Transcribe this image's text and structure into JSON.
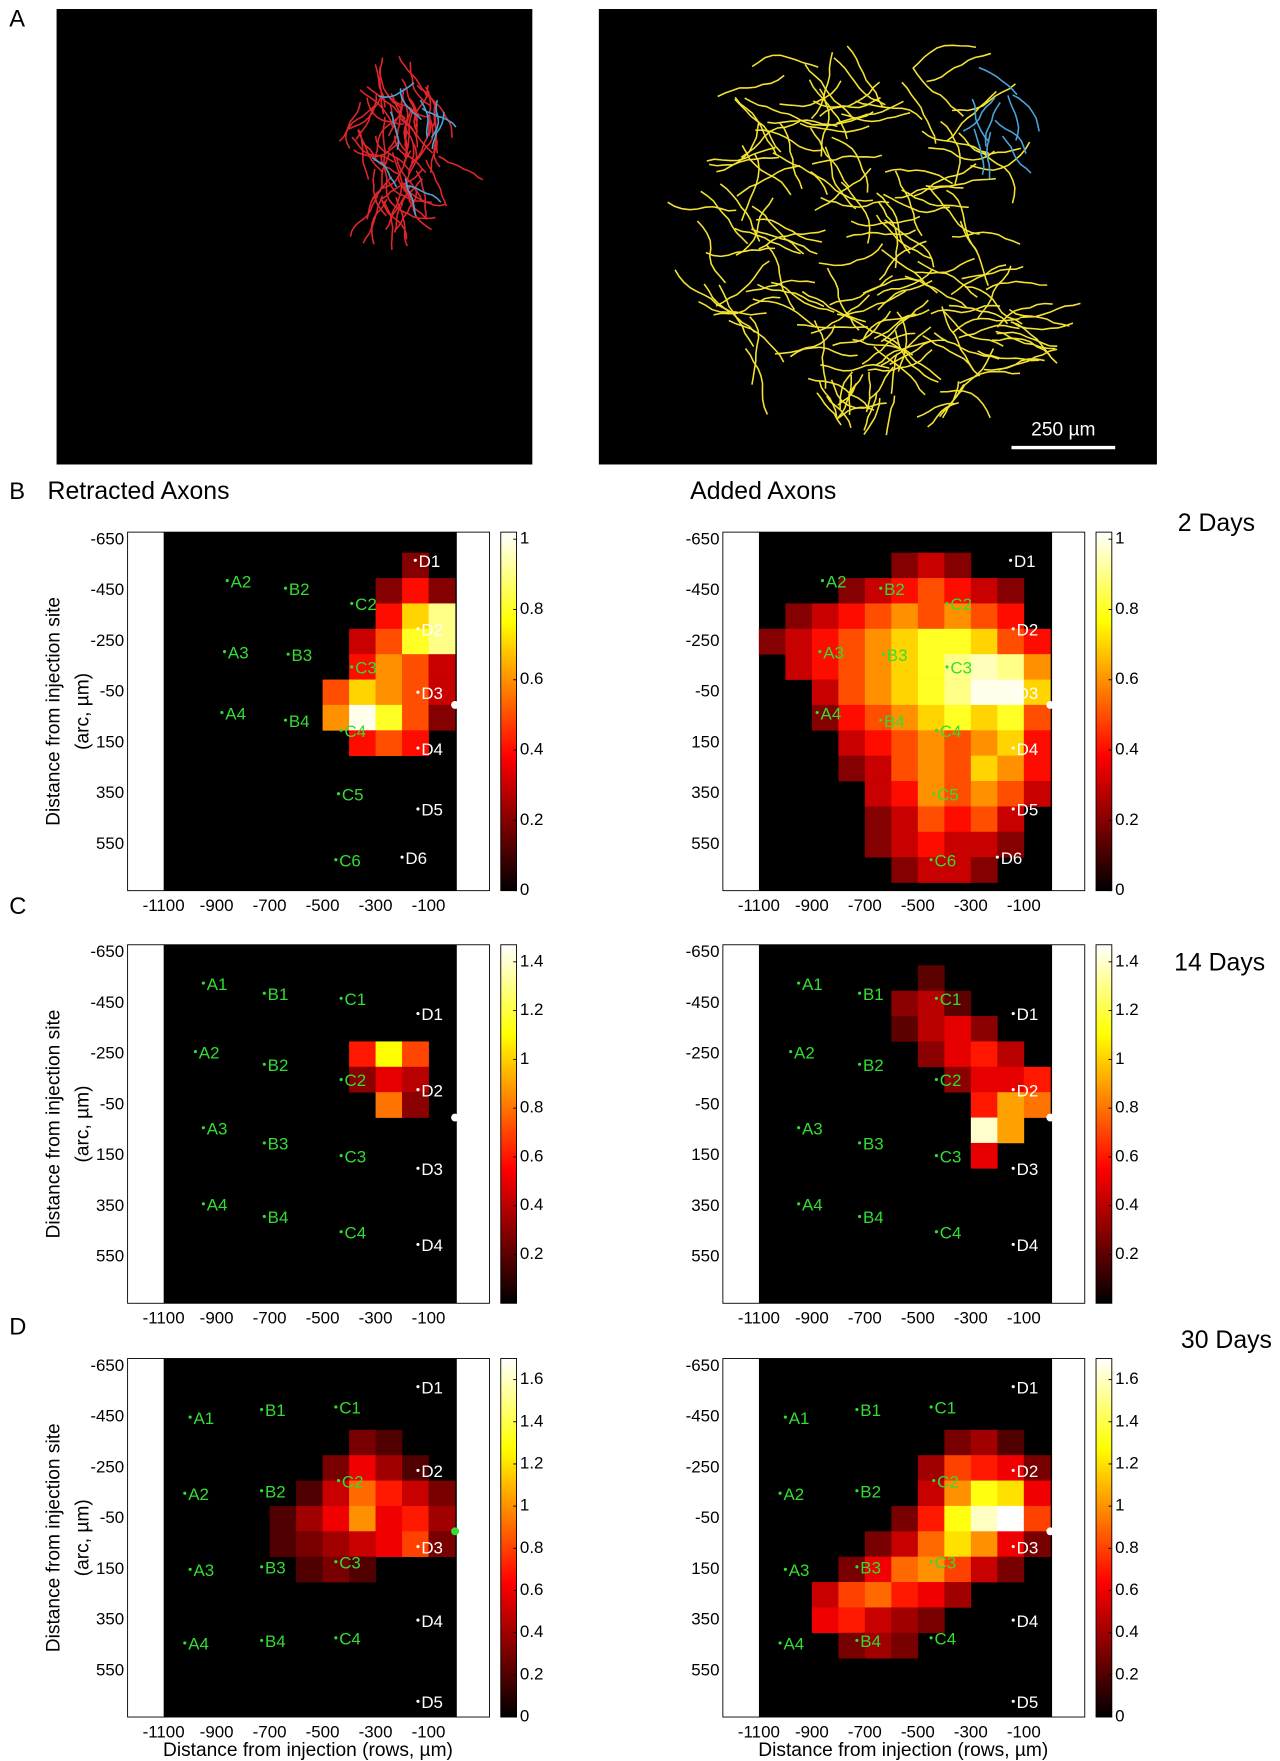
{
  "figure": {
    "panel_labels": [
      "A",
      "B",
      "C",
      "D"
    ],
    "scale_bar": "250 µm",
    "column_titles": [
      "Retracted Axons",
      "Added Axons"
    ],
    "times": [
      "2 Days",
      "14 Days",
      "30 Days"
    ],
    "x_label": "Distance from injection (rows, µm)",
    "y_label": [
      "Distance from injection site",
      "(arc, µm)"
    ],
    "whiskers": [
      [
        {
          "color": "#33dd33",
          "items": [
            [
              "A2",
              -860,
              -490
            ],
            [
              "B2",
              -640,
              -460
            ],
            [
              "C2",
              -390,
              -400
            ],
            [
              "A3",
              -870,
              -210
            ],
            [
              "B3",
              -630,
              -200
            ],
            [
              "C3",
              -390,
              -150
            ],
            [
              "A4",
              -880,
              30
            ],
            [
              "B4",
              -640,
              60
            ],
            [
              "C4",
              -430,
              100
            ],
            [
              "C5",
              -440,
              350
            ],
            [
              "C6",
              -450,
              610
            ]
          ]
        },
        {
          "color": "#ffffff",
          "items": [
            [
              "D1",
              -150,
              -570
            ],
            [
              "D2",
              -140,
              -300
            ],
            [
              "D3",
              -140,
              -50
            ],
            [
              "D4",
              -140,
              170
            ],
            [
              "D5",
              -140,
              410
            ],
            [
              "D6",
              -200,
              600
            ]
          ]
        }
      ],
      [
        {
          "color": "#33dd33",
          "items": [
            [
              "A1",
              -950,
              -530
            ],
            [
              "B1",
              -720,
              -490
            ],
            [
              "C1",
              -430,
              -470
            ],
            [
              "A2",
              -980,
              -260
            ],
            [
              "B2",
              -720,
              -210
            ],
            [
              "C2",
              -430,
              -150
            ],
            [
              "A3",
              -950,
              40
            ],
            [
              "B3",
              -720,
              100
            ],
            [
              "C3",
              -430,
              150
            ],
            [
              "A4",
              -950,
              340
            ],
            [
              "B4",
              -720,
              390
            ],
            [
              "C4",
              -430,
              450
            ]
          ]
        },
        {
          "color": "#ffffff",
          "items": [
            [
              "D1",
              -140,
              -410
            ],
            [
              "D2",
              -140,
              -110
            ],
            [
              "D3",
              -140,
              200
            ],
            [
              "D4",
              -140,
              500
            ]
          ]
        }
      ],
      [
        {
          "color": "#33dd33",
          "items": [
            [
              "A1",
              -1000,
              -450
            ],
            [
              "B1",
              -730,
              -480
            ],
            [
              "C1",
              -450,
              -490
            ],
            [
              "A2",
              -1020,
              -150
            ],
            [
              "B2",
              -730,
              -160
            ],
            [
              "C2",
              -440,
              -200
            ],
            [
              "A3",
              -1000,
              150
            ],
            [
              "B3",
              -730,
              140
            ],
            [
              "C3",
              -450,
              120
            ],
            [
              "A4",
              -1020,
              440
            ],
            [
              "B4",
              -730,
              430
            ],
            [
              "C4",
              -450,
              420
            ]
          ]
        },
        {
          "color": "#ffffff",
          "items": [
            [
              "D1",
              -140,
              -570
            ],
            [
              "D2",
              -140,
              -240
            ],
            [
              "D3",
              -140,
              60
            ],
            [
              "D4",
              -140,
              350
            ],
            [
              "D5",
              -140,
              670
            ]
          ]
        }
      ]
    ]
  },
  "chart_data": [
    {
      "type": "heatmap",
      "xlim": [
        -1236,
        130
      ],
      "ylim": [
        -681,
        732
      ],
      "xticks": [
        -1100,
        -900,
        -700,
        -500,
        -300,
        -100
      ],
      "yticks": [
        -650,
        -450,
        -250,
        -50,
        150,
        350,
        550
      ],
      "colorbar": {
        "lim": [
          0,
          1.02
        ],
        "ticks": [
          0,
          0.2,
          0.4,
          0.6,
          0.8,
          1
        ]
      },
      "injection": {
        "x": 0,
        "y": 0,
        "color": "#ffffff"
      },
      "bin": 100,
      "cells": [
        {
          "y": -550,
          "x": -150,
          "values": [
            0.2
          ]
        },
        {
          "y": -450,
          "x": -250,
          "values": [
            0.2,
            0.4,
            0.2
          ]
        },
        {
          "y": -350,
          "x": -250,
          "values": [
            0.4,
            0.7,
            0.9
          ]
        },
        {
          "y": -250,
          "x": -350,
          "values": [
            0.3,
            0.5,
            0.8,
            0.9
          ]
        },
        {
          "y": -150,
          "x": -350,
          "values": [
            0.4,
            0.6,
            0.5,
            0.3
          ]
        },
        {
          "y": -50,
          "x": -450,
          "values": [
            0.5,
            0.7,
            0.6,
            0.5,
            0.3
          ]
        },
        {
          "y": 50,
          "x": -450,
          "values": [
            0.6,
            1.0,
            0.8,
            0.5,
            0.2
          ]
        },
        {
          "y": 150,
          "x": -350,
          "values": [
            0.4,
            0.5,
            0.4
          ]
        }
      ]
    },
    {
      "type": "heatmap",
      "xlim": [
        -1236,
        130
      ],
      "ylim": [
        -681,
        732
      ],
      "xticks": [
        -1100,
        -900,
        -700,
        -500,
        -300,
        -100
      ],
      "yticks": [
        -650,
        -450,
        -250,
        -50,
        150,
        350,
        550
      ],
      "colorbar": {
        "lim": [
          0,
          1.02
        ],
        "ticks": [
          0,
          0.2,
          0.4,
          0.6,
          0.8,
          1
        ]
      },
      "injection": {
        "x": 0,
        "y": 0,
        "color": "#ffffff"
      },
      "bin": 100,
      "cells": [
        {
          "y": -550,
          "x": -550,
          "values": [
            0.2,
            0.3,
            0.2
          ]
        },
        {
          "y": -450,
          "x": -750,
          "values": [
            0.2,
            0.3,
            0.4,
            0.5,
            0.4,
            0.3,
            0.2
          ]
        },
        {
          "y": -350,
          "x": -950,
          "values": [
            0.2,
            0.3,
            0.4,
            0.5,
            0.6,
            0.5,
            0.6,
            0.5,
            0.4
          ]
        },
        {
          "y": -250,
          "x": -1050,
          "values": [
            0.2,
            0.3,
            0.4,
            0.5,
            0.6,
            0.7,
            0.8,
            0.8,
            0.7,
            0.5,
            0.4
          ]
        },
        {
          "y": -150,
          "x": -950,
          "values": [
            0.3,
            0.4,
            0.5,
            0.6,
            0.7,
            0.8,
            0.9,
            0.95,
            0.9,
            0.6
          ]
        },
        {
          "y": -50,
          "x": -850,
          "values": [
            0.3,
            0.5,
            0.6,
            0.7,
            0.8,
            0.9,
            1.0,
            1.0,
            0.7
          ]
        },
        {
          "y": 50,
          "x": -850,
          "values": [
            0.2,
            0.4,
            0.5,
            0.6,
            0.7,
            0.8,
            0.7,
            0.8,
            0.5
          ]
        },
        {
          "y": 150,
          "x": -750,
          "values": [
            0.3,
            0.4,
            0.5,
            0.6,
            0.5,
            0.6,
            0.7,
            0.4
          ]
        },
        {
          "y": 250,
          "x": -750,
          "values": [
            0.2,
            0.3,
            0.5,
            0.6,
            0.5,
            0.7,
            0.6,
            0.4
          ]
        },
        {
          "y": 350,
          "x": -650,
          "values": [
            0.3,
            0.4,
            0.6,
            0.5,
            0.6,
            0.5,
            0.3
          ]
        },
        {
          "y": 450,
          "x": -650,
          "values": [
            0.2,
            0.3,
            0.5,
            0.4,
            0.5,
            0.3
          ]
        },
        {
          "y": 550,
          "x": -650,
          "values": [
            0.2,
            0.3,
            0.4,
            0.3,
            0.3,
            0.2
          ]
        },
        {
          "y": 650,
          "x": -550,
          "values": [
            0.2,
            0.3,
            0.3,
            0.2
          ]
        }
      ]
    },
    {
      "type": "heatmap",
      "xlim": [
        -1236,
        130
      ],
      "ylim": [
        -681,
        732
      ],
      "xticks": [
        -1100,
        -900,
        -700,
        -500,
        -300,
        -100
      ],
      "yticks": [
        -650,
        -450,
        -250,
        -50,
        150,
        350,
        550
      ],
      "colorbar": {
        "lim": [
          0,
          1.47
        ],
        "ticks": [
          0.2,
          0.4,
          0.6,
          0.8,
          1,
          1.2,
          1.4
        ]
      },
      "injection": {
        "x": 0,
        "y": 0,
        "color": "#ffffff"
      },
      "bin": 100,
      "cells": [
        {
          "y": -250,
          "x": -350,
          "values": [
            0.6,
            1.1,
            0.7
          ]
        },
        {
          "y": -150,
          "x": -350,
          "values": [
            0.3,
            0.5,
            0.4
          ]
        },
        {
          "y": -50,
          "x": -250,
          "values": [
            0.8,
            0.3
          ]
        }
      ]
    },
    {
      "type": "heatmap",
      "xlim": [
        -1236,
        130
      ],
      "ylim": [
        -681,
        732
      ],
      "xticks": [
        -1100,
        -900,
        -700,
        -500,
        -300,
        -100
      ],
      "yticks": [
        -650,
        -450,
        -250,
        -50,
        150,
        350,
        550
      ],
      "colorbar": {
        "lim": [
          0,
          1.47
        ],
        "ticks": [
          0.2,
          0.4,
          0.6,
          0.8,
          1,
          1.2,
          1.4
        ]
      },
      "injection": {
        "x": 0,
        "y": 0,
        "color": "#ffffff"
      },
      "bin": 100,
      "cells": [
        {
          "y": -550,
          "x": -450,
          "values": [
            0.2
          ]
        },
        {
          "y": -450,
          "x": -550,
          "values": [
            0.3,
            0.4,
            0.2
          ]
        },
        {
          "y": -350,
          "x": -550,
          "values": [
            0.2,
            0.4,
            0.5,
            0.3
          ]
        },
        {
          "y": -250,
          "x": -450,
          "values": [
            0.3,
            0.5,
            0.6,
            0.4
          ]
        },
        {
          "y": -150,
          "x": -350,
          "values": [
            0.3,
            0.5,
            0.5,
            0.6
          ]
        },
        {
          "y": -50,
          "x": -250,
          "values": [
            0.6,
            0.9,
            0.8
          ]
        },
        {
          "y": 50,
          "x": -250,
          "values": [
            1.4,
            0.9
          ]
        },
        {
          "y": 150,
          "x": -250,
          "values": [
            0.5
          ]
        }
      ]
    },
    {
      "type": "heatmap",
      "xlim": [
        -1236,
        130
      ],
      "ylim": [
        -681,
        732
      ],
      "xticks": [
        -1100,
        -900,
        -700,
        -500,
        -300,
        -100
      ],
      "yticks": [
        -650,
        -450,
        -250,
        -50,
        150,
        350,
        550
      ],
      "colorbar": {
        "lim": [
          0,
          1.7
        ],
        "ticks": [
          0,
          0.2,
          0.4,
          0.6,
          0.8,
          1,
          1.2,
          1.4,
          1.6
        ]
      },
      "injection": {
        "x": 0,
        "y": 0,
        "color": "#33dd33"
      },
      "bin": 100,
      "cells": [
        {
          "y": -350,
          "x": -350,
          "values": [
            0.3,
            0.2
          ]
        },
        {
          "y": -250,
          "x": -450,
          "values": [
            0.3,
            0.6,
            0.4,
            0.2
          ]
        },
        {
          "y": -150,
          "x": -550,
          "values": [
            0.2,
            0.5,
            0.9,
            0.7,
            0.5,
            0.3
          ]
        },
        {
          "y": -50,
          "x": -650,
          "values": [
            0.2,
            0.4,
            0.6,
            1.0,
            0.6,
            0.7,
            0.4
          ]
        },
        {
          "y": 50,
          "x": -650,
          "values": [
            0.2,
            0.3,
            0.4,
            0.5,
            0.6,
            0.8,
            0.3
          ]
        },
        {
          "y": 150,
          "x": -550,
          "values": [
            0.2,
            0.3,
            0.2
          ]
        }
      ]
    },
    {
      "type": "heatmap",
      "xlim": [
        -1236,
        130
      ],
      "ylim": [
        -681,
        732
      ],
      "xticks": [
        -1100,
        -900,
        -700,
        -500,
        -300,
        -100
      ],
      "yticks": [
        -650,
        -450,
        -250,
        -50,
        150,
        350,
        550
      ],
      "colorbar": {
        "lim": [
          0,
          1.7
        ],
        "ticks": [
          0,
          0.2,
          0.4,
          0.6,
          0.8,
          1,
          1.2,
          1.4,
          1.6
        ]
      },
      "injection": {
        "x": 0,
        "y": 0,
        "color": "#ffffff"
      },
      "bin": 100,
      "cells": [
        {
          "y": -350,
          "x": -350,
          "values": [
            0.3,
            0.4,
            0.2
          ]
        },
        {
          "y": -250,
          "x": -450,
          "values": [
            0.4,
            0.8,
            0.7,
            0.6,
            0.3
          ]
        },
        {
          "y": -150,
          "x": -450,
          "values": [
            0.5,
            1.0,
            1.3,
            1.2,
            0.6
          ]
        },
        {
          "y": -50,
          "x": -550,
          "values": [
            0.3,
            0.7,
            1.3,
            1.6,
            1.7,
            0.8
          ]
        },
        {
          "y": 50,
          "x": -650,
          "values": [
            0.3,
            0.5,
            0.9,
            1.2,
            1.0,
            0.6,
            0.3
          ]
        },
        {
          "y": 150,
          "x": -750,
          "values": [
            0.3,
            0.6,
            0.9,
            1.0,
            0.8,
            0.5,
            0.3
          ]
        },
        {
          "y": 250,
          "x": -850,
          "values": [
            0.5,
            0.8,
            0.9,
            0.7,
            0.6,
            0.4
          ]
        },
        {
          "y": 350,
          "x": -850,
          "values": [
            0.6,
            0.7,
            0.5,
            0.4,
            0.3
          ]
        },
        {
          "y": 450,
          "x": -750,
          "values": [
            0.3,
            0.4,
            0.3
          ]
        }
      ]
    }
  ]
}
